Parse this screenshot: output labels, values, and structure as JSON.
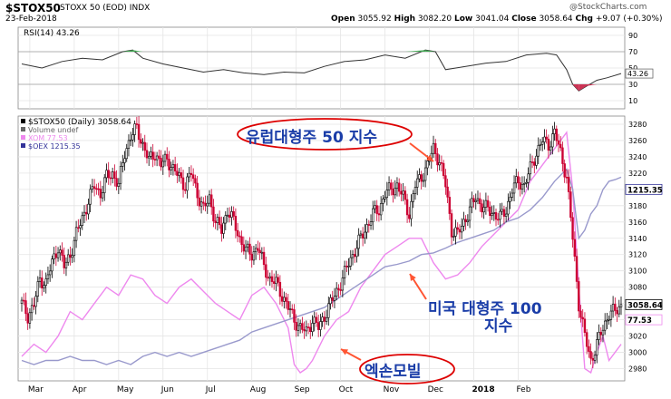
{
  "header": {
    "symbol": "$STOX50",
    "name": "STOXX 50 (EOD)  INDX",
    "date": "23-Feb-2018",
    "quote": {
      "open_label": "Open",
      "open": "3055.92",
      "high_label": "High",
      "high": "3082.20",
      "low_label": "Low",
      "low": "3041.04",
      "close_label": "Close",
      "close": "3058.64",
      "chg_label": "Chg",
      "chg": "+9.07 (+0.30%)"
    },
    "credit": "@StockCharts.com"
  },
  "rsi_panel": {
    "label": "RSI(14) 43.26",
    "ticks": [
      "90",
      "70",
      "50",
      "30",
      "10"
    ],
    "value_tag": "43.26"
  },
  "main_legend": {
    "line1": "$STOX50 (Daily) 3058.64",
    "line2": "Volume undef",
    "line3": "XOM 77.53",
    "line4": "$OEX 1215.35"
  },
  "annotations": {
    "europe": "유럽대형주 50 지수",
    "us_line1": "미국 대형주 100",
    "us_line2": "지수",
    "exxon": "엑손모빌"
  },
  "tags": {
    "oex": "1215.35",
    "stox": "3058.64",
    "xom": "77.53"
  },
  "colors": {
    "up": "#000000",
    "down": "#cc0033",
    "xom": "#ee88ee",
    "oex": "#9999cc",
    "rsi_line": "#333333",
    "rsi_over": "#44aa55",
    "rsi_under": "#cc3355",
    "annotation_text": "#1a3da8",
    "ellipse": "#dd0000",
    "arrow": "#ff5533"
  },
  "chart_data": {
    "type": "line",
    "title": "$STOX50 STOXX 50 (EOD) INDX",
    "x_tick_labels": [
      "Mar",
      "Apr",
      "May",
      "Jun",
      "Jul",
      "Aug",
      "Sep",
      "Oct",
      "Nov",
      "Dec",
      "2018",
      "Feb"
    ],
    "y_ticks": [
      2980,
      3000,
      3020,
      3040,
      3060,
      3080,
      3100,
      3120,
      3140,
      3160,
      3180,
      3200,
      3220,
      3240,
      3260,
      3280
    ],
    "ylim": [
      2965,
      3290
    ],
    "rsi_ylim": [
      0,
      100
    ],
    "rsi_ticks": [
      90,
      70,
      50,
      30,
      10
    ],
    "rsi_latest": 43.26,
    "series": [
      {
        "name": "$STOX50",
        "kind": "candlestick",
        "values": [
          [
            0,
            3060
          ],
          [
            3,
            3045
          ],
          [
            6,
            3058
          ],
          [
            9,
            3090
          ],
          [
            12,
            3085
          ],
          [
            15,
            3110
          ],
          [
            18,
            3130
          ],
          [
            21,
            3105
          ],
          [
            24,
            3120
          ],
          [
            27,
            3145
          ],
          [
            30,
            3165
          ],
          [
            33,
            3185
          ],
          [
            36,
            3205
          ],
          [
            39,
            3195
          ],
          [
            42,
            3215
          ],
          [
            45,
            3220
          ],
          [
            48,
            3205
          ],
          [
            51,
            3245
          ],
          [
            54,
            3265
          ],
          [
            57,
            3275
          ],
          [
            60,
            3255
          ],
          [
            63,
            3235
          ],
          [
            66,
            3245
          ],
          [
            69,
            3230
          ],
          [
            72,
            3238
          ],
          [
            75,
            3225
          ],
          [
            78,
            3215
          ],
          [
            81,
            3205
          ],
          [
            84,
            3220
          ],
          [
            87,
            3195
          ],
          [
            90,
            3175
          ],
          [
            93,
            3190
          ],
          [
            96,
            3160
          ],
          [
            99,
            3150
          ],
          [
            102,
            3175
          ],
          [
            105,
            3160
          ],
          [
            108,
            3140
          ],
          [
            111,
            3125
          ],
          [
            114,
            3120
          ],
          [
            117,
            3130
          ],
          [
            120,
            3105
          ],
          [
            123,
            3090
          ],
          [
            126,
            3085
          ],
          [
            129,
            3070
          ],
          [
            132,
            3055
          ],
          [
            135,
            3040
          ],
          [
            138,
            3030
          ],
          [
            141,
            3025
          ],
          [
            144,
            3040
          ],
          [
            147,
            3030
          ],
          [
            150,
            3045
          ],
          [
            153,
            3060
          ],
          [
            156,
            3075
          ],
          [
            159,
            3090
          ],
          [
            162,
            3110
          ],
          [
            165,
            3125
          ],
          [
            168,
            3140
          ],
          [
            171,
            3155
          ],
          [
            174,
            3170
          ],
          [
            177,
            3175
          ],
          [
            180,
            3195
          ],
          [
            183,
            3200
          ],
          [
            186,
            3205
          ],
          [
            189,
            3190
          ],
          [
            192,
            3170
          ],
          [
            195,
            3205
          ],
          [
            198,
            3215
          ],
          [
            201,
            3230
          ],
          [
            204,
            3250
          ],
          [
            207,
            3235
          ],
          [
            210,
            3205
          ],
          [
            213,
            3150
          ],
          [
            216,
            3145
          ],
          [
            219,
            3160
          ],
          [
            222,
            3175
          ],
          [
            225,
            3190
          ],
          [
            228,
            3180
          ],
          [
            231,
            3175
          ],
          [
            234,
            3170
          ],
          [
            237,
            3165
          ],
          [
            240,
            3175
          ],
          [
            243,
            3200
          ],
          [
            246,
            3210
          ],
          [
            249,
            3205
          ],
          [
            252,
            3225
          ],
          [
            255,
            3245
          ],
          [
            258,
            3260
          ],
          [
            261,
            3255
          ],
          [
            264,
            3270
          ],
          [
            267,
            3245
          ],
          [
            270,
            3215
          ],
          [
            273,
            3140
          ],
          [
            276,
            3060
          ],
          [
            279,
            3020
          ],
          [
            282,
            2990
          ],
          [
            285,
            3010
          ],
          [
            288,
            3030
          ],
          [
            291,
            3048
          ],
          [
            294,
            3050
          ],
          [
            297,
            3058.64
          ]
        ]
      },
      {
        "name": "XOM",
        "kind": "line",
        "values": [
          [
            0,
            2995
          ],
          [
            6,
            3010
          ],
          [
            12,
            3000
          ],
          [
            18,
            3020
          ],
          [
            24,
            3050
          ],
          [
            30,
            3040
          ],
          [
            36,
            3060
          ],
          [
            42,
            3080
          ],
          [
            48,
            3070
          ],
          [
            54,
            3095
          ],
          [
            60,
            3090
          ],
          [
            66,
            3070
          ],
          [
            72,
            3060
          ],
          [
            78,
            3080
          ],
          [
            84,
            3090
          ],
          [
            90,
            3075
          ],
          [
            96,
            3060
          ],
          [
            102,
            3050
          ],
          [
            108,
            3040
          ],
          [
            114,
            3070
          ],
          [
            120,
            3080
          ],
          [
            126,
            3060
          ],
          [
            132,
            3030
          ],
          [
            135,
            2985
          ],
          [
            138,
            2975
          ],
          [
            141,
            2980
          ],
          [
            144,
            2990
          ],
          [
            150,
            3020
          ],
          [
            156,
            3040
          ],
          [
            162,
            3050
          ],
          [
            168,
            3080
          ],
          [
            174,
            3100
          ],
          [
            180,
            3120
          ],
          [
            186,
            3130
          ],
          [
            192,
            3140
          ],
          [
            198,
            3140
          ],
          [
            204,
            3110
          ],
          [
            210,
            3090
          ],
          [
            216,
            3095
          ],
          [
            222,
            3110
          ],
          [
            228,
            3130
          ],
          [
            234,
            3145
          ],
          [
            240,
            3160
          ],
          [
            246,
            3175
          ],
          [
            252,
            3210
          ],
          [
            258,
            3230
          ],
          [
            264,
            3250
          ],
          [
            270,
            3270
          ],
          [
            273,
            3200
          ],
          [
            276,
            3080
          ],
          [
            279,
            2980
          ],
          [
            282,
            2975
          ],
          [
            285,
            3000
          ],
          [
            288,
            3020
          ],
          [
            291,
            2990
          ],
          [
            294,
            3000
          ],
          [
            297,
            3010
          ]
        ]
      },
      {
        "name": "$OEX",
        "kind": "line",
        "values": [
          [
            0,
            2990
          ],
          [
            6,
            2985
          ],
          [
            12,
            2990
          ],
          [
            18,
            2990
          ],
          [
            24,
            2995
          ],
          [
            30,
            2990
          ],
          [
            36,
            2990
          ],
          [
            42,
            2985
          ],
          [
            48,
            2990
          ],
          [
            54,
            2985
          ],
          [
            60,
            2995
          ],
          [
            66,
            3000
          ],
          [
            72,
            2995
          ],
          [
            78,
            3000
          ],
          [
            84,
            2995
          ],
          [
            90,
            3000
          ],
          [
            96,
            3005
          ],
          [
            102,
            3010
          ],
          [
            108,
            3015
          ],
          [
            114,
            3025
          ],
          [
            120,
            3030
          ],
          [
            126,
            3035
          ],
          [
            132,
            3040
          ],
          [
            138,
            3045
          ],
          [
            144,
            3050
          ],
          [
            150,
            3055
          ],
          [
            156,
            3065
          ],
          [
            162,
            3075
          ],
          [
            168,
            3085
          ],
          [
            174,
            3095
          ],
          [
            180,
            3105
          ],
          [
            186,
            3108
          ],
          [
            192,
            3112
          ],
          [
            198,
            3120
          ],
          [
            204,
            3122
          ],
          [
            210,
            3128
          ],
          [
            216,
            3135
          ],
          [
            222,
            3140
          ],
          [
            228,
            3145
          ],
          [
            234,
            3150
          ],
          [
            240,
            3160
          ],
          [
            246,
            3165
          ],
          [
            252,
            3175
          ],
          [
            258,
            3190
          ],
          [
            264,
            3210
          ],
          [
            270,
            3225
          ],
          [
            273,
            3200
          ],
          [
            276,
            3140
          ],
          [
            279,
            3150
          ],
          [
            282,
            3170
          ],
          [
            285,
            3180
          ],
          [
            288,
            3200
          ],
          [
            291,
            3210
          ],
          [
            294,
            3212
          ],
          [
            297,
            3215
          ]
        ]
      }
    ],
    "rsi_values": [
      [
        0,
        55
      ],
      [
        10,
        50
      ],
      [
        20,
        58
      ],
      [
        30,
        62
      ],
      [
        40,
        60
      ],
      [
        50,
        70
      ],
      [
        55,
        72
      ],
      [
        60,
        62
      ],
      [
        70,
        55
      ],
      [
        80,
        50
      ],
      [
        90,
        45
      ],
      [
        100,
        48
      ],
      [
        110,
        44
      ],
      [
        120,
        42
      ],
      [
        130,
        45
      ],
      [
        140,
        44
      ],
      [
        150,
        52
      ],
      [
        160,
        58
      ],
      [
        170,
        60
      ],
      [
        180,
        66
      ],
      [
        190,
        62
      ],
      [
        200,
        72
      ],
      [
        205,
        70
      ],
      [
        210,
        48
      ],
      [
        220,
        52
      ],
      [
        230,
        56
      ],
      [
        240,
        58
      ],
      [
        250,
        66
      ],
      [
        260,
        68
      ],
      [
        265,
        66
      ],
      [
        270,
        48
      ],
      [
        273,
        30
      ],
      [
        276,
        22
      ],
      [
        280,
        28
      ],
      [
        285,
        35
      ],
      [
        290,
        38
      ],
      [
        297,
        43.26
      ]
    ]
  }
}
